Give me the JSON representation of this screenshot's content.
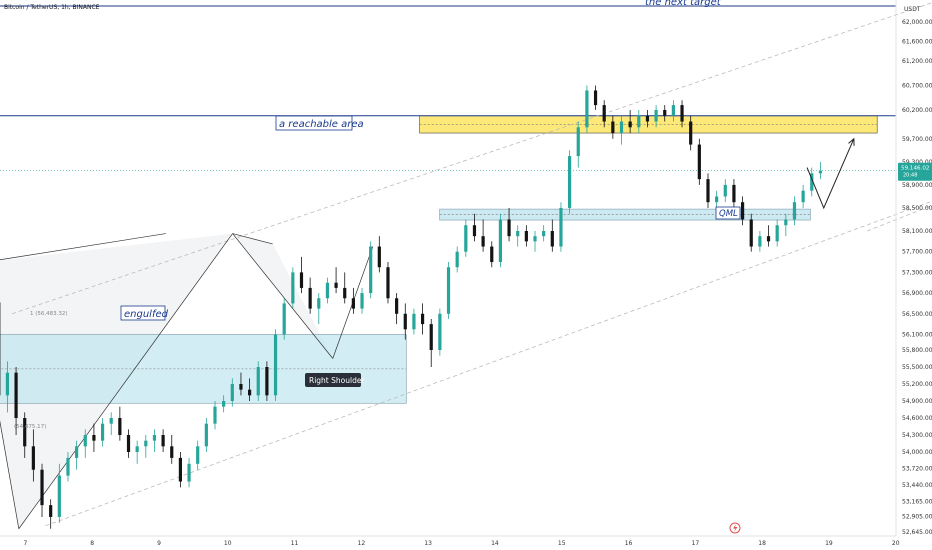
{
  "header": {
    "symbol": "Bitcoin / TetherUS, 1h, BINANCE"
  },
  "chart_data": {
    "type": "candlestick",
    "currency": "USDT",
    "y_ticks": [
      62000,
      61600,
      61200,
      60700,
      60200,
      59700,
      59300,
      58900,
      58500,
      58100,
      57700,
      57300,
      56900,
      56500,
      56100,
      55800,
      55500,
      55200,
      54900,
      54600,
      54300,
      54000,
      53720,
      53440,
      53165,
      52905,
      52645
    ],
    "y_tick_labels": [
      "62,000.00",
      "61,600.00",
      "61,200.00",
      "60,700.00",
      "60,200.00",
      "59,700.00",
      "59,300.00",
      "58,900.00",
      "58,500.00",
      "58,100.00",
      "57,700.00",
      "57,300.00",
      "56,900.00",
      "56,500.00",
      "56,100.00",
      "55,800.00",
      "55,500.00",
      "55,200.00",
      "54,900.00",
      "54,600.00",
      "54,300.00",
      "54,000.00",
      "53,720.00",
      "53,440.00",
      "53,165.00",
      "52,905.00",
      "52,645.00"
    ],
    "x_ticks": [
      "7",
      "8",
      "9",
      "10",
      "11",
      "12",
      "13",
      "14",
      "15",
      "16",
      "17",
      "18",
      "19",
      "20"
    ],
    "last_price": "59,146.02",
    "last_price_countdown": "20:48",
    "colors": {
      "up": "#26a69a",
      "down": "#141414",
      "price_label": "#26a69a",
      "trend_line": "#bbbbbb",
      "resistance_zone": "#fbe561",
      "qml_zone": "#b8e0ec",
      "support_zone": "#bfe6ef",
      "horizontal_level": "#1e3a8a"
    },
    "horizontal_level": 60100,
    "zones": [
      {
        "name": "resistance",
        "y_top": 60100,
        "y_bottom": 59800
      },
      {
        "name": "qml",
        "y_top": 58480,
        "y_bottom": 58290
      },
      {
        "name": "support",
        "y_top": 56100,
        "y_bottom": 54860
      }
    ],
    "candles_ohlc_approx": [
      [
        56720,
        56780,
        54800,
        55000
      ],
      [
        55000,
        55600,
        54700,
        55400
      ],
      [
        55400,
        55500,
        54300,
        54600
      ],
      [
        54600,
        54700,
        53900,
        54100
      ],
      [
        54100,
        54400,
        53500,
        53700
      ],
      [
        53700,
        53800,
        52900,
        53100
      ],
      [
        53100,
        53200,
        52700,
        52900
      ],
      [
        52900,
        53800,
        52800,
        53600
      ],
      [
        53600,
        54000,
        53500,
        53900
      ],
      [
        53900,
        54200,
        53700,
        54100
      ],
      [
        54100,
        54400,
        53900,
        54300
      ],
      [
        54300,
        54500,
        54000,
        54200
      ],
      [
        54200,
        54600,
        54100,
        54500
      ],
      [
        54500,
        54700,
        54300,
        54600
      ],
      [
        54600,
        54800,
        54200,
        54300
      ],
      [
        54300,
        54400,
        53900,
        54000
      ],
      [
        54000,
        54200,
        53800,
        54100
      ],
      [
        54100,
        54300,
        53900,
        54200
      ],
      [
        54200,
        54400,
        54000,
        54300
      ],
      [
        54300,
        54400,
        54000,
        54100
      ],
      [
        54100,
        54300,
        53800,
        53900
      ],
      [
        53900,
        54000,
        53400,
        53500
      ],
      [
        53500,
        53900,
        53400,
        53800
      ],
      [
        53800,
        54200,
        53700,
        54100
      ],
      [
        54100,
        54600,
        54000,
        54500
      ],
      [
        54500,
        54900,
        54400,
        54800
      ],
      [
        54800,
        55000,
        54700,
        54900
      ],
      [
        54900,
        55300,
        54800,
        55200
      ],
      [
        55200,
        55400,
        55000,
        55100
      ],
      [
        55100,
        55300,
        54900,
        55000
      ],
      [
        55000,
        55600,
        54900,
        55500
      ],
      [
        55500,
        55600,
        54900,
        55000
      ],
      [
        55000,
        56200,
        54900,
        56100
      ],
      [
        56100,
        56800,
        56000,
        56700
      ],
      [
        56700,
        57400,
        56600,
        57300
      ],
      [
        57300,
        57600,
        56900,
        57000
      ],
      [
        57000,
        57200,
        56500,
        56600
      ],
      [
        56600,
        56900,
        56300,
        56800
      ],
      [
        56800,
        57200,
        56700,
        57100
      ],
      [
        57100,
        57400,
        56900,
        57000
      ],
      [
        57000,
        57300,
        56700,
        56800
      ],
      [
        56800,
        57000,
        56500,
        56600
      ],
      [
        56600,
        57000,
        56500,
        56900
      ],
      [
        56900,
        57900,
        56800,
        57800
      ],
      [
        57800,
        58000,
        57300,
        57400
      ],
      [
        57400,
        57500,
        56700,
        56800
      ],
      [
        56800,
        56900,
        56300,
        56500
      ],
      [
        56500,
        56700,
        56000,
        56200
      ],
      [
        56200,
        56600,
        56100,
        56500
      ],
      [
        56500,
        56700,
        56100,
        56300
      ],
      [
        56300,
        56400,
        55500,
        55800
      ],
      [
        55800,
        56600,
        55700,
        56500
      ],
      [
        56500,
        57500,
        56400,
        57400
      ],
      [
        57400,
        57800,
        57300,
        57700
      ],
      [
        57700,
        58300,
        57600,
        58200
      ],
      [
        58200,
        58400,
        57900,
        58000
      ],
      [
        58000,
        58300,
        57700,
        57800
      ],
      [
        57800,
        57900,
        57400,
        57500
      ],
      [
        57500,
        58400,
        57400,
        58300
      ],
      [
        58300,
        58500,
        57900,
        58000
      ],
      [
        58000,
        58200,
        57800,
        58100
      ],
      [
        58100,
        58200,
        57800,
        57900
      ],
      [
        57900,
        58100,
        57700,
        58000
      ],
      [
        58000,
        58200,
        57900,
        58100
      ],
      [
        58100,
        58300,
        57700,
        57800
      ],
      [
        57800,
        58600,
        57700,
        58500
      ],
      [
        58500,
        59500,
        58400,
        59400
      ],
      [
        59400,
        60000,
        59200,
        59900
      ],
      [
        59900,
        60700,
        59800,
        60600
      ],
      [
        60600,
        60700,
        60200,
        60300
      ],
      [
        60300,
        60400,
        59900,
        60000
      ],
      [
        60000,
        60100,
        59700,
        59800
      ],
      [
        59800,
        60100,
        59600,
        60000
      ],
      [
        60000,
        60200,
        59800,
        59900
      ],
      [
        59900,
        60200,
        59800,
        60100
      ],
      [
        60100,
        60200,
        59900,
        60000
      ],
      [
        60000,
        60300,
        59900,
        60200
      ],
      [
        60200,
        60300,
        60000,
        60100
      ],
      [
        60100,
        60400,
        60000,
        60300
      ],
      [
        60300,
        60400,
        59900,
        60000
      ],
      [
        60000,
        60100,
        59500,
        59600
      ],
      [
        59600,
        59700,
        58900,
        59000
      ],
      [
        59000,
        59100,
        58500,
        58600
      ],
      [
        58600,
        58800,
        58300,
        58700
      ],
      [
        58700,
        59000,
        58600,
        58900
      ],
      [
        58900,
        59000,
        58500,
        58600
      ],
      [
        58600,
        58700,
        58200,
        58300
      ],
      [
        58300,
        58400,
        57700,
        57800
      ],
      [
        57800,
        58100,
        57700,
        58000
      ],
      [
        58000,
        58200,
        57800,
        57900
      ],
      [
        57900,
        58300,
        57800,
        58200
      ],
      [
        58200,
        58400,
        58000,
        58300
      ],
      [
        58300,
        58700,
        58200,
        58600
      ],
      [
        58600,
        58900,
        58500,
        58800
      ],
      [
        58800,
        59200,
        58700,
        59100
      ],
      [
        59100,
        59300,
        59000,
        59146
      ]
    ],
    "candle_x_range": [
      -0.4,
      11.9
    ],
    "trend_lines": [
      {
        "name": "upper-channel",
        "x1": -0.2,
        "y1": 56500,
        "x2": 13.8,
        "y2": 62500
      },
      {
        "name": "lower-channel",
        "x1": 0.3,
        "y1": 52750,
        "x2": 17.5,
        "y2": 60300
      },
      {
        "name": "mid-channel",
        "x1": 12.6,
        "y1": 58100,
        "x2": 18.1,
        "y2": 60700
      },
      {
        "name": "pattern-top",
        "x1": -0.6,
        "y1": 57500,
        "x2": 2.1,
        "y2": 58050
      },
      {
        "name": "pattern-top-2",
        "x1": 3.1,
        "y1": 58050,
        "x2": 3.7,
        "y2": 57850
      },
      {
        "name": "pattern-left",
        "x1": -0.6,
        "y1": 56000,
        "x2": -0.1,
        "y2": 52700
      },
      {
        "name": "pattern-v1",
        "x1": -0.1,
        "y1": 52700,
        "x2": 3.1,
        "y2": 58050
      },
      {
        "name": "pattern-v2",
        "x1": 3.1,
        "y1": 58050,
        "x2": 4.6,
        "y2": 55650
      },
      {
        "name": "pattern-v3",
        "x1": 4.6,
        "y1": 55650,
        "x2": 5.2,
        "y2": 57800
      }
    ],
    "projection": [
      {
        "x": 11.7,
        "y": 59200
      },
      {
        "x": 11.95,
        "y": 58500
      },
      {
        "x": 12.4,
        "y": 59700
      }
    ],
    "annotations": {
      "next_target": "the next target",
      "reachable_area": "a reachable area",
      "engulfed": "engulfed",
      "right_shoulder": "Right Shoulder",
      "qml": "QML",
      "fib_upper": "1 (56,483.32)",
      "fib_lower": "(54,475.17)"
    }
  }
}
